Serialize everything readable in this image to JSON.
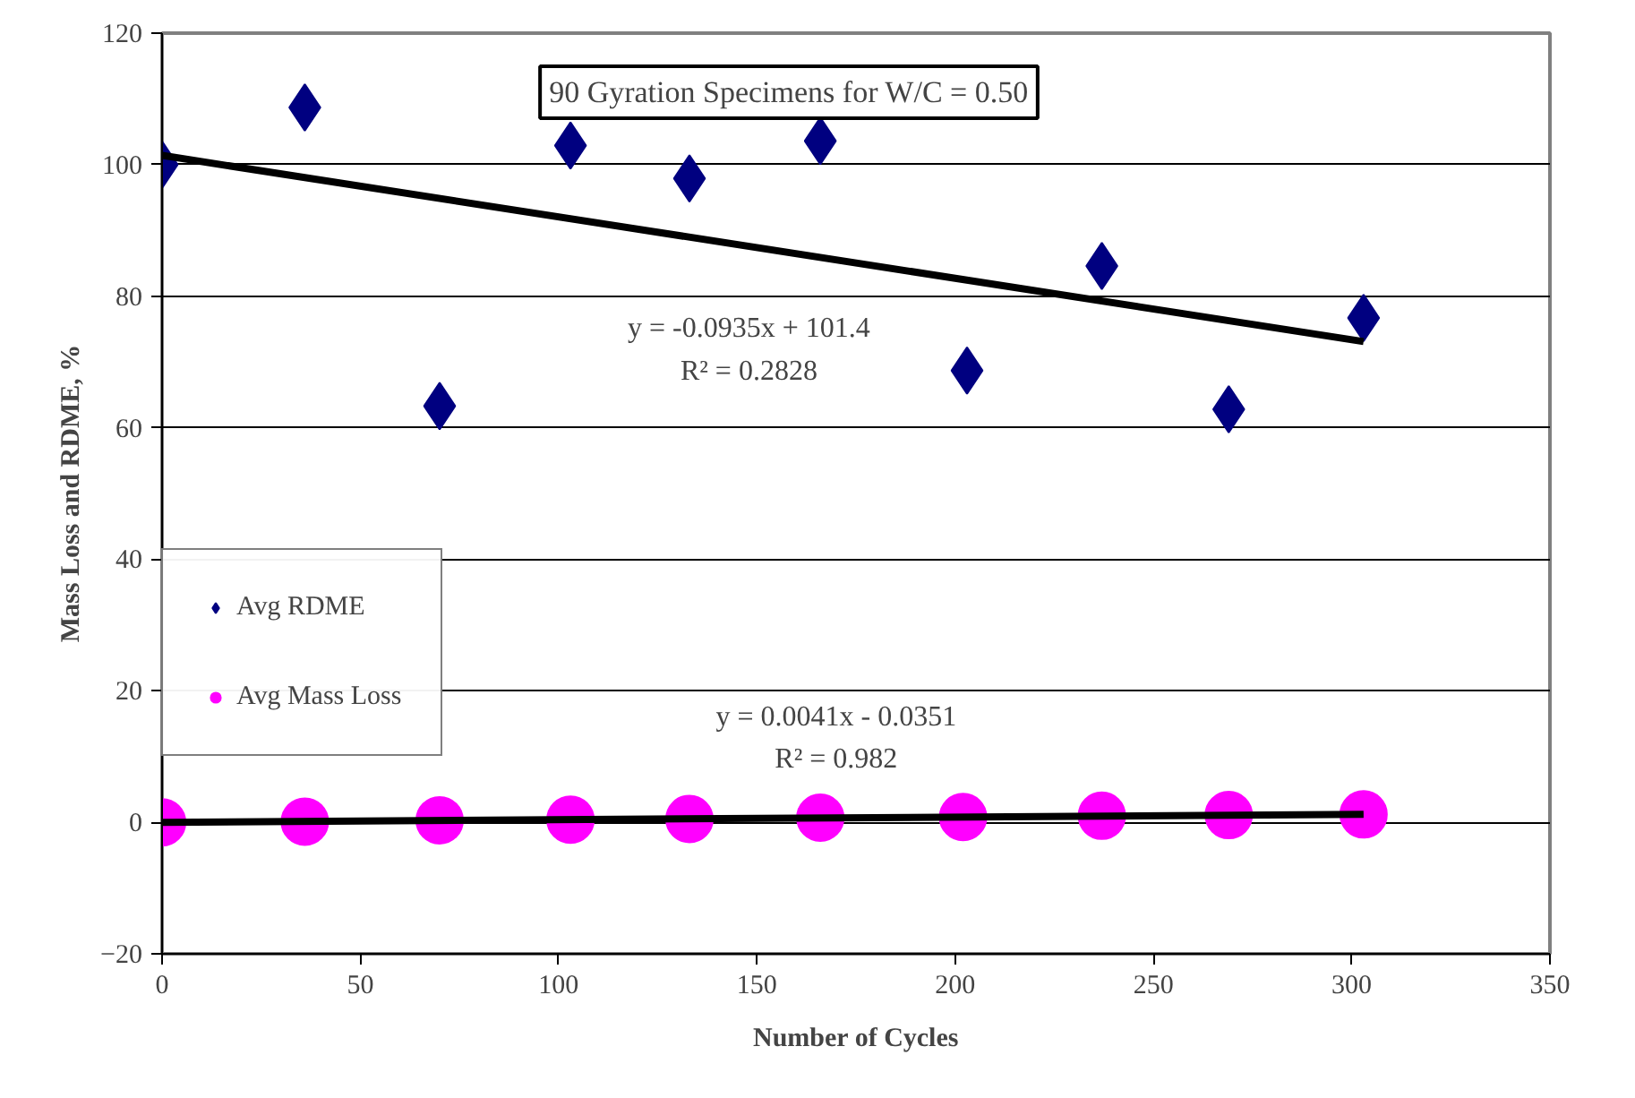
{
  "chart_data": {
    "type": "scatter",
    "title": "90 Gyration Specimens for W/C = 0.50",
    "xlabel": "Number of Cycles",
    "ylabel": "Mass Loss and RDME, %",
    "xlim": [
      0,
      350
    ],
    "xticks": [
      0,
      50,
      100,
      150,
      200,
      250,
      300,
      350
    ],
    "ylim": [
      -20,
      120
    ],
    "yticks": [
      -20,
      0,
      20,
      40,
      60,
      80,
      100,
      120
    ],
    "grid": "y",
    "legend": "left",
    "annotations": [
      "y = -0.0935x + 101.4",
      "R² = 0.2828",
      "y = 0.0041x - 0.0351",
      "R² = 0.982"
    ],
    "series": [
      {
        "name": "Avg RDME",
        "color": "#000080",
        "marker": "diamond",
        "x": [
          0,
          36,
          70,
          103,
          133,
          166,
          203,
          237,
          269,
          303
        ],
        "values": [
          100,
          108.7,
          63.3,
          102.9,
          97.9,
          103.6,
          68.7,
          84.6,
          62.8,
          76.7
        ]
      },
      {
        "name": "Avg Mass Loss",
        "color": "#ff00ff",
        "marker": "circle",
        "x": [
          0,
          36,
          70,
          103,
          133,
          166,
          202,
          237,
          269,
          303
        ],
        "values": [
          0,
          0.1,
          0.3,
          0.4,
          0.5,
          0.7,
          0.8,
          1,
          1.1,
          1.2
        ]
      },
      {
        "type": "line",
        "color": "#000000",
        "marker": "none",
        "x": [
          0,
          303
        ],
        "values": [
          101.4,
          73.1
        ]
      },
      {
        "type": "line",
        "color": "#000000",
        "marker": "none",
        "x": [
          0,
          303
        ],
        "values": [
          0,
          1.2
        ]
      }
    ]
  }
}
